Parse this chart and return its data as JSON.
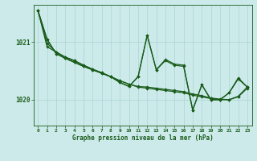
{
  "title": "Graphe pression niveau de la mer (hPa)",
  "bg_color": "#cceaea",
  "grid_color": "#aad4d4",
  "line_color": "#1a5c1a",
  "marker_color": "#1a5c1a",
  "xlim": [
    -0.5,
    23.5
  ],
  "ylim": [
    1019.55,
    1021.65
  ],
  "yticks": [
    1020,
    1021
  ],
  "xticks": [
    0,
    1,
    2,
    3,
    4,
    5,
    6,
    7,
    8,
    9,
    10,
    11,
    12,
    13,
    14,
    15,
    16,
    17,
    18,
    19,
    20,
    21,
    22,
    23
  ],
  "series1": [
    1021.55,
    1021.05,
    1020.8,
    1020.72,
    1020.65,
    1020.58,
    1020.52,
    1020.46,
    1020.4,
    1020.33,
    1020.27,
    1020.22,
    1020.2,
    1020.18,
    1020.16,
    1020.14,
    1020.12,
    1020.08,
    1020.05,
    1020.02,
    1020.0,
    1020.0,
    1020.05,
    1020.2
  ],
  "series2": [
    1021.55,
    1021.05,
    1020.8,
    1020.72,
    1020.65,
    1020.58,
    1020.52,
    1020.46,
    1020.4,
    1020.33,
    1020.27,
    1020.23,
    1020.22,
    1020.2,
    1020.18,
    1020.16,
    1020.14,
    1020.1,
    1020.07,
    1020.03,
    1020.01,
    1020.0,
    1020.06,
    1020.22
  ],
  "series3": [
    1021.55,
    1020.98,
    1020.83,
    1020.74,
    1020.68,
    1020.6,
    1020.53,
    1020.47,
    1020.4,
    1020.3,
    1020.23,
    1020.4,
    1021.12,
    1020.52,
    1020.7,
    1020.62,
    1020.6,
    1019.82,
    1020.26,
    1020.0,
    1020.0,
    1020.12,
    1020.36,
    1020.22
  ],
  "series4": [
    1021.55,
    1020.92,
    1020.83,
    1020.74,
    1020.68,
    1020.6,
    1020.53,
    1020.47,
    1020.4,
    1020.3,
    1020.23,
    1020.4,
    1021.12,
    1020.52,
    1020.68,
    1020.6,
    1020.58,
    1019.82,
    1020.26,
    1020.0,
    1020.0,
    1020.12,
    1020.38,
    1020.22
  ]
}
